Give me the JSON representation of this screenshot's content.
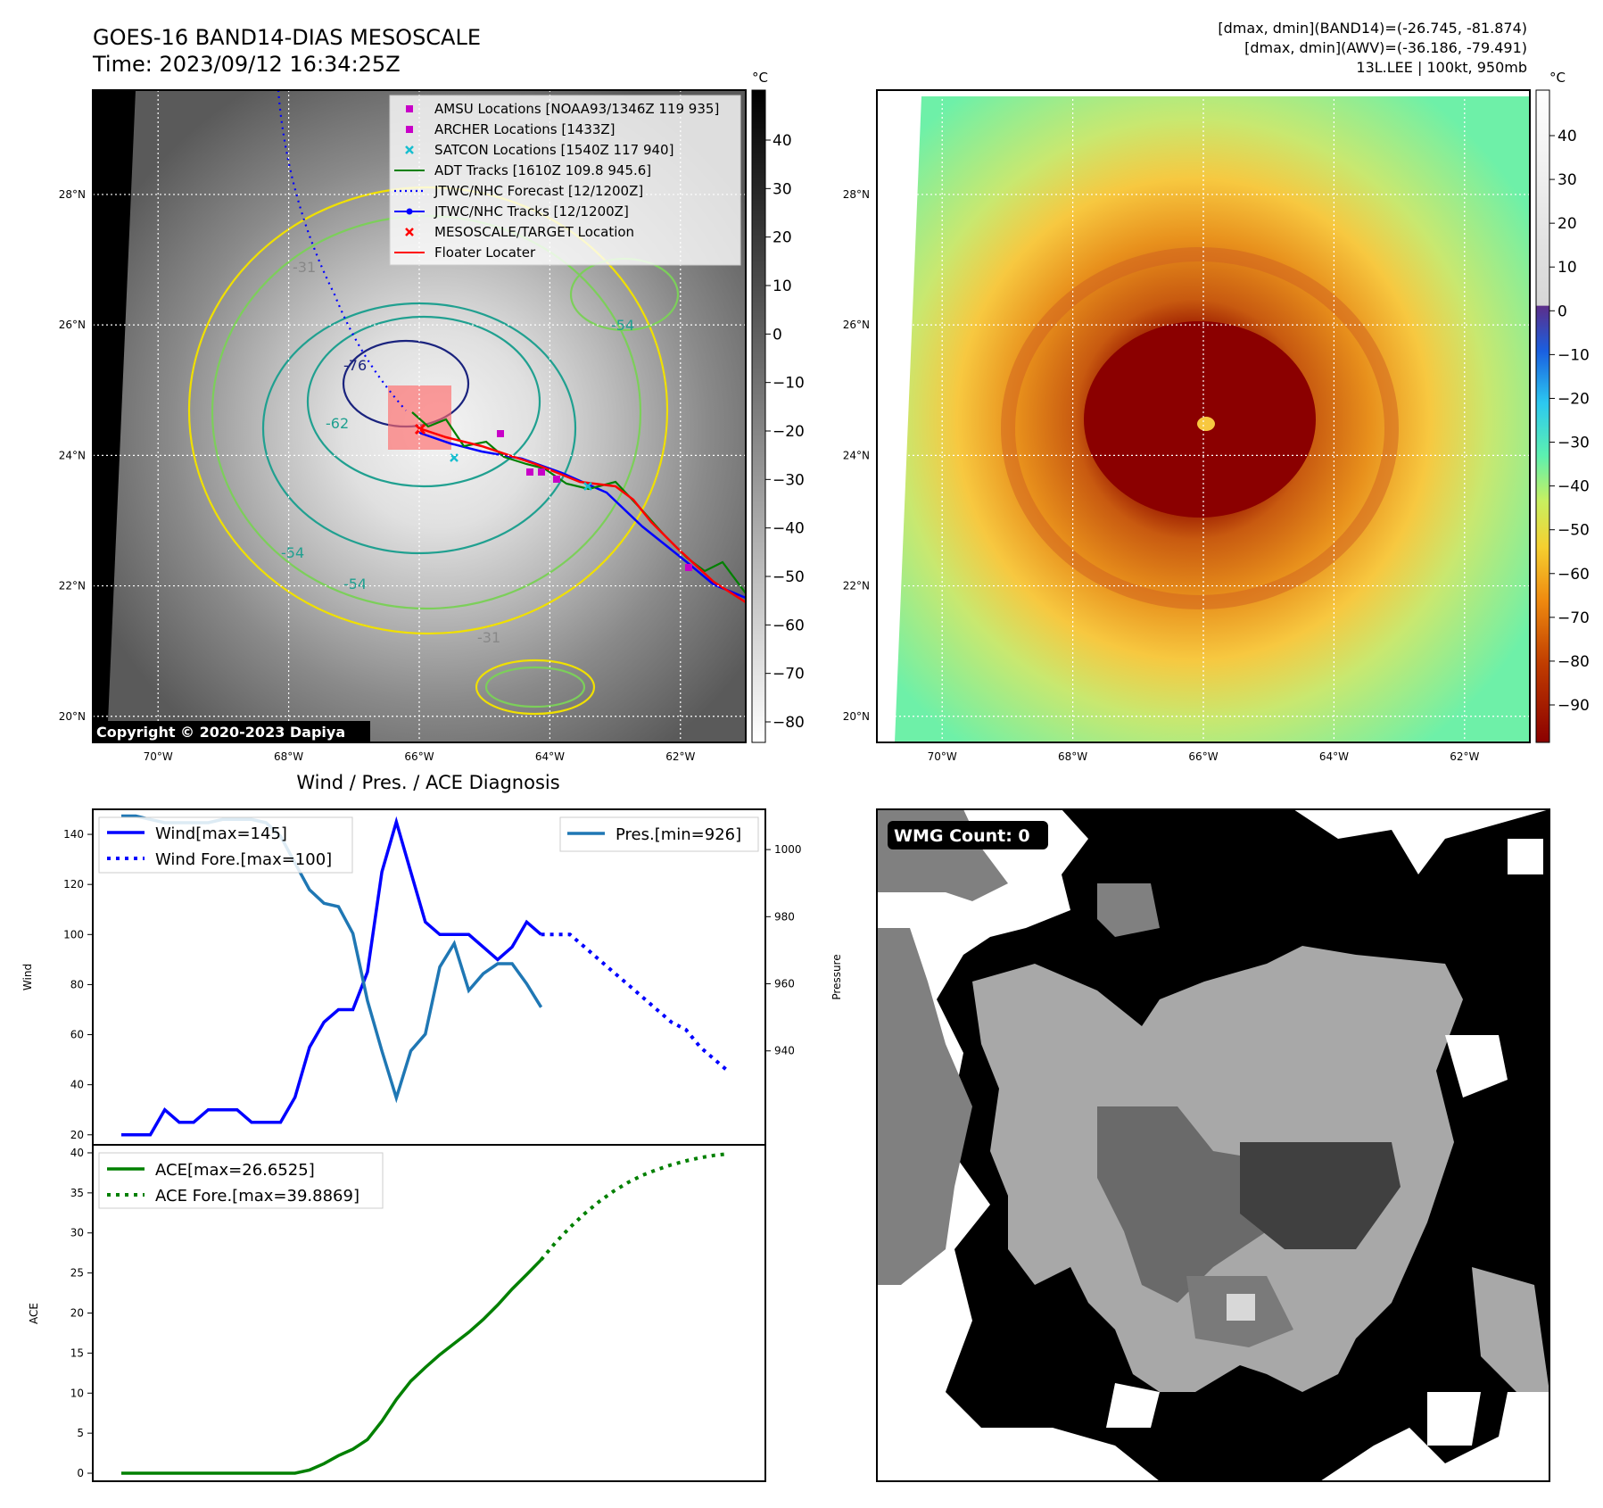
{
  "header": {
    "title_line1": "GOES-16 BAND14-DIAS MESOSCALE",
    "title_line2": "Time: 2023/09/12 16:34:25Z",
    "info_line1": "[dmax, dmin](BAND14)=(-26.745, -81.874)",
    "info_line2": "[dmax, dmin](AWV)=(-36.186, -79.491)",
    "info_line3": "13L.LEE | 100kt, 950mb"
  },
  "map": {
    "lat_labels": [
      "28°N",
      "26°N",
      "24°N",
      "22°N",
      "20°N"
    ],
    "lat_values": [
      28,
      26,
      24,
      22,
      20
    ],
    "lon_labels": [
      "70°W",
      "68°W",
      "66°W",
      "64°W",
      "62°W"
    ],
    "lon_values": [
      -70,
      -68,
      -66,
      -64,
      -62
    ],
    "lon_range": [
      -71,
      -61
    ],
    "lat_range": [
      19.6,
      29.6
    ],
    "copyright": "Copyright © 2020-2023 Dapiya",
    "contour_labels": [
      "-31",
      "-54",
      "-76",
      "-62",
      "-54",
      "-31",
      "-54"
    ],
    "legend": [
      {
        "label": "AMSU Locations [NOAA93/1346Z 119 935]",
        "marker": "square",
        "color": "#c800c8"
      },
      {
        "label": "ARCHER Locations [1433Z]",
        "marker": "square",
        "color": "#c800c8"
      },
      {
        "label": "SATCON Locations [1540Z 117 940]",
        "marker": "x",
        "color": "#17becf"
      },
      {
        "label": "ADT Tracks [1610Z 109.8 945.6]",
        "marker": "line",
        "color": "#008000"
      },
      {
        "label": "JTWC/NHC Forecast [12/1200Z]",
        "marker": "dotted",
        "color": "#0000ff"
      },
      {
        "label": "JTWC/NHC Tracks [12/1200Z]",
        "marker": "line-dot",
        "color": "#0000ff"
      },
      {
        "label": "MESOSCALE/TARGET Location",
        "marker": "x",
        "color": "#ff0000"
      },
      {
        "label": "Floater Locater",
        "marker": "line",
        "color": "#ff0000"
      }
    ],
    "colorbar_unit": "°C",
    "colorbar_ticks": [
      "40",
      "30",
      "20",
      "10",
      "0",
      "−10",
      "−20",
      "−30",
      "−40",
      "−50",
      "−60",
      "−70",
      "−80"
    ],
    "colorbar2_ticks": [
      "40",
      "30",
      "20",
      "10",
      "0",
      "−10",
      "−20",
      "−30",
      "−40",
      "−50",
      "−60",
      "−70",
      "−80",
      "−90"
    ]
  },
  "chart_data": [
    {
      "type": "line",
      "title": "Wind / Pres. / ACE Diagnosis",
      "ylabel": "Wind",
      "y2label": "Pressure",
      "ylim": [
        16,
        150
      ],
      "y2lim": [
        912,
        1012
      ],
      "yticks": [
        20,
        40,
        60,
        80,
        100,
        120,
        140
      ],
      "y2ticks": [
        940,
        960,
        980,
        1000
      ],
      "series": [
        {
          "name": "Wind[max=145]",
          "style": "solid",
          "color": "#0000ff",
          "axis": "left",
          "x": [
            0,
            1,
            2,
            3,
            4,
            5,
            6,
            7,
            8,
            9,
            10,
            11,
            12,
            13,
            14,
            15,
            16,
            17,
            18,
            19,
            20,
            21,
            22,
            23,
            24,
            25,
            26,
            27,
            28,
            29
          ],
          "values": [
            20,
            20,
            20,
            30,
            25,
            25,
            30,
            30,
            30,
            25,
            25,
            25,
            35,
            55,
            65,
            70,
            70,
            85,
            125,
            145,
            125,
            105,
            100,
            100,
            100,
            95,
            90,
            95,
            105,
            100
          ]
        },
        {
          "name": "Wind Fore.[max=100]",
          "style": "dotted",
          "color": "#0000ff",
          "axis": "left",
          "x": [
            29,
            30,
            31,
            32,
            33,
            34,
            35,
            36,
            37,
            38,
            39,
            40,
            41,
            42
          ],
          "values": [
            100,
            100,
            100,
            95,
            90,
            85,
            80,
            75,
            70,
            65,
            62,
            55,
            50,
            45
          ]
        },
        {
          "name": "Pres.[min=926]",
          "style": "solid",
          "color": "#1f77b4",
          "axis": "right",
          "x": [
            0,
            1,
            2,
            3,
            4,
            5,
            6,
            7,
            8,
            9,
            10,
            11,
            12,
            13,
            14,
            15,
            16,
            17,
            18,
            19,
            20,
            21,
            22,
            23,
            24,
            25,
            26,
            27,
            28,
            29
          ],
          "values": [
            1010,
            1010,
            1009,
            1008,
            1008,
            1008,
            1008,
            1009,
            1009,
            1009,
            1008,
            1004,
            996,
            988,
            984,
            983,
            975,
            955,
            940,
            926,
            940,
            945,
            965,
            972,
            958,
            963,
            966,
            966,
            960,
            953
          ]
        }
      ]
    },
    {
      "type": "line",
      "ylabel": "ACE",
      "ylim": [
        -1,
        41
      ],
      "yticks": [
        0,
        5,
        10,
        15,
        20,
        25,
        30,
        35,
        40
      ],
      "series": [
        {
          "name": "ACE[max=26.6525]",
          "style": "solid",
          "color": "#008000",
          "x": [
            0,
            2,
            4,
            6,
            8,
            10,
            12,
            13,
            14,
            15,
            16,
            17,
            18,
            19,
            20,
            21,
            22,
            23,
            24,
            25,
            26,
            27,
            28,
            29
          ],
          "values": [
            0,
            0,
            0,
            0,
            0,
            0,
            0,
            0.4,
            1.2,
            2.2,
            3.0,
            4.2,
            6.5,
            9.2,
            11.5,
            13.2,
            14.8,
            16.2,
            17.6,
            19.2,
            21.0,
            23.0,
            24.8,
            26.65
          ]
        },
        {
          "name": "ACE Fore.[max=39.8869]",
          "style": "dotted",
          "color": "#008000",
          "x": [
            29,
            30,
            31,
            32,
            33,
            34,
            35,
            36,
            37,
            38,
            39,
            40,
            41,
            42
          ],
          "values": [
            26.65,
            28.8,
            30.7,
            32.4,
            33.9,
            35.2,
            36.3,
            37.2,
            37.9,
            38.5,
            39.0,
            39.4,
            39.7,
            39.89
          ]
        }
      ]
    }
  ],
  "wmg": {
    "label": "WMG Count: 0"
  }
}
